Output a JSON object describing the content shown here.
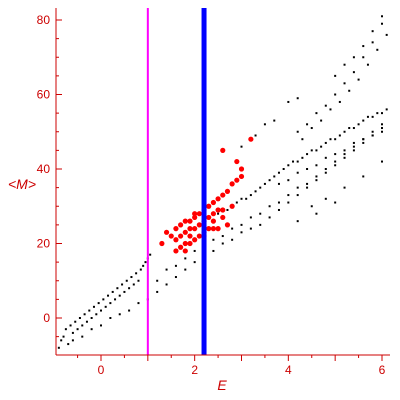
{
  "chart_data": {
    "type": "scatter",
    "xlabel": "E",
    "ylabel": "<M>",
    "xlim": [
      -1,
      6.2
    ],
    "ylim": [
      -10,
      82
    ],
    "x_ticks": [
      0,
      2,
      4,
      6
    ],
    "y_ticks": [
      0,
      20,
      40,
      60,
      80
    ],
    "grid": false,
    "colors": {
      "axis": "#cc0000",
      "black_points": "#000000",
      "red_points": "#ff0000",
      "magenta_line": "#ff00ff",
      "blue_line": "#0000ff"
    },
    "vertical_lines": [
      {
        "x": 1.0,
        "color": "#ff00ff"
      },
      {
        "x": 2.2,
        "color": "#0000ff"
      }
    ],
    "series": [
      {
        "color": "#000000",
        "points": [
          [
            -0.9,
            -8
          ],
          [
            -0.85,
            -6
          ],
          [
            -0.8,
            -5
          ],
          [
            -0.75,
            -3
          ],
          [
            -0.7,
            -7
          ],
          [
            -0.65,
            -2
          ],
          [
            -0.6,
            -4
          ],
          [
            -0.55,
            -1
          ],
          [
            -0.5,
            -3
          ],
          [
            -0.45,
            0
          ],
          [
            -0.4,
            -2
          ],
          [
            -0.35,
            1
          ],
          [
            -0.3,
            -1
          ],
          [
            -0.25,
            2
          ],
          [
            -0.2,
            0
          ],
          [
            -0.15,
            3
          ],
          [
            -0.1,
            1
          ],
          [
            -0.05,
            4
          ],
          [
            0.0,
            2
          ],
          [
            0.05,
            5
          ],
          [
            0.1,
            3
          ],
          [
            0.15,
            6
          ],
          [
            0.2,
            4
          ],
          [
            0.25,
            7
          ],
          [
            0.3,
            5
          ],
          [
            0.35,
            8
          ],
          [
            0.4,
            6
          ],
          [
            0.45,
            9
          ],
          [
            0.5,
            7
          ],
          [
            0.55,
            10
          ],
          [
            0.6,
            8
          ],
          [
            0.65,
            11
          ],
          [
            0.7,
            9
          ],
          [
            0.75,
            12
          ],
          [
            0.8,
            10
          ],
          [
            0.85,
            13
          ],
          [
            0.9,
            14
          ],
          [
            0.95,
            15
          ],
          [
            1.0,
            16
          ],
          [
            1.05,
            17
          ],
          [
            -0.6,
            -6
          ],
          [
            -0.4,
            -5
          ],
          [
            -0.2,
            -3
          ],
          [
            0.0,
            -2
          ],
          [
            0.2,
            0
          ],
          [
            0.4,
            1
          ],
          [
            0.6,
            2
          ],
          [
            0.8,
            4
          ],
          [
            1.0,
            5
          ],
          [
            1.2,
            7
          ],
          [
            1.4,
            9
          ],
          [
            1.6,
            11
          ],
          [
            1.8,
            13
          ],
          [
            2.0,
            15
          ],
          [
            2.2,
            17
          ],
          [
            2.4,
            18
          ],
          [
            2.6,
            20
          ],
          [
            2.8,
            21
          ],
          [
            3.0,
            23
          ],
          [
            3.2,
            24
          ],
          [
            3.4,
            25
          ],
          [
            3.6,
            27
          ],
          [
            3.8,
            29
          ],
          [
            4.0,
            31
          ],
          [
            4.2,
            33
          ],
          [
            4.4,
            35
          ],
          [
            4.6,
            37
          ],
          [
            4.8,
            39
          ],
          [
            5.0,
            41
          ],
          [
            5.2,
            43
          ],
          [
            5.4,
            45
          ],
          [
            5.6,
            47
          ],
          [
            5.8,
            49
          ],
          [
            6.0,
            51
          ],
          [
            1.2,
            10
          ],
          [
            1.4,
            13
          ],
          [
            1.6,
            14
          ],
          [
            1.8,
            16
          ],
          [
            2.0,
            18
          ],
          [
            2.2,
            19
          ],
          [
            2.4,
            21
          ],
          [
            2.6,
            22
          ],
          [
            2.8,
            24
          ],
          [
            3.0,
            25
          ],
          [
            3.2,
            27
          ],
          [
            3.4,
            28
          ],
          [
            3.6,
            30
          ],
          [
            3.8,
            31
          ],
          [
            4.0,
            33
          ],
          [
            4.2,
            35
          ],
          [
            4.4,
            36
          ],
          [
            4.6,
            38
          ],
          [
            4.8,
            40
          ],
          [
            5.0,
            42
          ],
          [
            5.2,
            44
          ],
          [
            5.4,
            46
          ],
          [
            5.6,
            48
          ],
          [
            5.8,
            50
          ],
          [
            6.0,
            52
          ],
          [
            2.5,
            28
          ],
          [
            2.7,
            29
          ],
          [
            2.9,
            31
          ],
          [
            3.1,
            32
          ],
          [
            3.3,
            34
          ],
          [
            3.5,
            36
          ],
          [
            3.7,
            38
          ],
          [
            3.9,
            40
          ],
          [
            4.1,
            42
          ],
          [
            4.3,
            43
          ],
          [
            4.5,
            45
          ],
          [
            4.7,
            46
          ],
          [
            4.9,
            48
          ],
          [
            5.1,
            49
          ],
          [
            5.3,
            51
          ],
          [
            5.5,
            52
          ],
          [
            5.7,
            54
          ],
          [
            5.9,
            55
          ],
          [
            6.1,
            56
          ],
          [
            2.6,
            29
          ],
          [
            2.8,
            30
          ],
          [
            3.0,
            32
          ],
          [
            3.2,
            33
          ],
          [
            3.4,
            35
          ],
          [
            3.6,
            37
          ],
          [
            3.8,
            39
          ],
          [
            4.0,
            41
          ],
          [
            4.2,
            42
          ],
          [
            4.4,
            44
          ],
          [
            4.6,
            45
          ],
          [
            4.8,
            47
          ],
          [
            5.0,
            48
          ],
          [
            5.2,
            50
          ],
          [
            5.4,
            51
          ],
          [
            5.6,
            53
          ],
          [
            5.8,
            54
          ],
          [
            6.0,
            55
          ],
          [
            3.8,
            36
          ],
          [
            4.0,
            37
          ],
          [
            4.2,
            39
          ],
          [
            4.4,
            40
          ],
          [
            4.6,
            41
          ],
          [
            4.8,
            43
          ],
          [
            5.0,
            44
          ],
          [
            5.2,
            45
          ],
          [
            5.4,
            47
          ],
          [
            5.6,
            48
          ],
          [
            5.8,
            49
          ],
          [
            6.0,
            50
          ],
          [
            4.2,
            50
          ],
          [
            4.4,
            52
          ],
          [
            4.6,
            55
          ],
          [
            4.8,
            57
          ],
          [
            5.0,
            60
          ],
          [
            5.2,
            63
          ],
          [
            5.4,
            66
          ],
          [
            5.6,
            70
          ],
          [
            5.8,
            74
          ],
          [
            6.0,
            79
          ],
          [
            4.3,
            48
          ],
          [
            4.5,
            51
          ],
          [
            4.7,
            53
          ],
          [
            4.9,
            56
          ],
          [
            5.1,
            58
          ],
          [
            5.3,
            61
          ],
          [
            5.5,
            64
          ],
          [
            5.7,
            68
          ],
          [
            5.9,
            72
          ],
          [
            6.1,
            76
          ],
          [
            5.0,
            65
          ],
          [
            5.2,
            68
          ],
          [
            5.4,
            70
          ],
          [
            5.6,
            73
          ],
          [
            5.8,
            77
          ],
          [
            6.0,
            81
          ],
          [
            4.0,
            58
          ],
          [
            4.2,
            59
          ],
          [
            3.5,
            52
          ],
          [
            3.7,
            53
          ],
          [
            3.0,
            46
          ],
          [
            3.3,
            49
          ],
          [
            4.5,
            30
          ],
          [
            4.8,
            32
          ],
          [
            5.2,
            35
          ],
          [
            5.6,
            38
          ],
          [
            6.0,
            42
          ],
          [
            4.2,
            26
          ],
          [
            4.6,
            28
          ],
          [
            5.0,
            31
          ]
        ]
      },
      {
        "color": "#ff0000",
        "points": [
          [
            1.5,
            22
          ],
          [
            1.6,
            24
          ],
          [
            1.7,
            25
          ],
          [
            1.8,
            26
          ],
          [
            1.9,
            24
          ],
          [
            2.0,
            27
          ],
          [
            2.1,
            28
          ],
          [
            2.2,
            29
          ],
          [
            2.3,
            30
          ],
          [
            2.4,
            31
          ],
          [
            2.5,
            32
          ],
          [
            2.6,
            33
          ],
          [
            2.7,
            34
          ],
          [
            2.8,
            36
          ],
          [
            2.9,
            37
          ],
          [
            3.0,
            38
          ],
          [
            1.6,
            21
          ],
          [
            1.7,
            22
          ],
          [
            1.8,
            23
          ],
          [
            1.9,
            22
          ],
          [
            2.0,
            24
          ],
          [
            2.1,
            25
          ],
          [
            2.2,
            26
          ],
          [
            2.3,
            27
          ],
          [
            2.4,
            28
          ],
          [
            2.5,
            29
          ],
          [
            1.7,
            19
          ],
          [
            1.8,
            18
          ],
          [
            1.9,
            20
          ],
          [
            2.0,
            21
          ],
          [
            2.1,
            22
          ],
          [
            2.2,
            23
          ],
          [
            2.3,
            24
          ],
          [
            2.4,
            26
          ],
          [
            2.6,
            27
          ],
          [
            2.8,
            30
          ],
          [
            2.5,
            24
          ],
          [
            2.7,
            25
          ],
          [
            1.6,
            18
          ],
          [
            1.8,
            20
          ],
          [
            1.9,
            26
          ],
          [
            2.0,
            28
          ],
          [
            2.6,
            45
          ],
          [
            3.0,
            40
          ],
          [
            2.9,
            42
          ],
          [
            3.2,
            48
          ],
          [
            2.2,
            22
          ],
          [
            2.4,
            24
          ],
          [
            2.6,
            29
          ],
          [
            1.4,
            23
          ],
          [
            1.3,
            20
          ]
        ]
      }
    ]
  }
}
